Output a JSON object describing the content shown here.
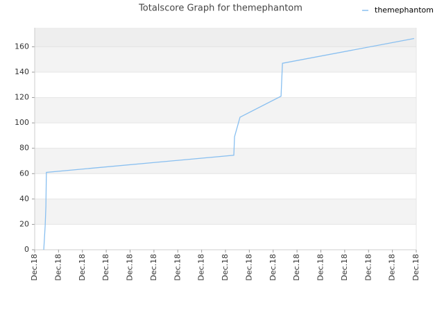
{
  "chart_data": {
    "type": "line",
    "title": "Totalscore Graph for themephantom",
    "x": [
      0.38,
      0.44,
      0.47,
      0.49,
      8.35,
      8.38,
      8.61,
      10.33,
      10.39,
      15.91
    ],
    "series": [
      {
        "name": "themephantom",
        "color": "#88bff0",
        "values": [
          0,
          19,
          34,
          61,
          74.5,
          89,
          104.5,
          121,
          147,
          166.5
        ]
      }
    ],
    "xlim": [
      0,
      16
    ],
    "xticks": [
      {
        "value": 0,
        "label": "Dec.18"
      },
      {
        "value": 1,
        "label": "Dec.18"
      },
      {
        "value": 2,
        "label": "Dec.18"
      },
      {
        "value": 3,
        "label": "Dec.18"
      },
      {
        "value": 4,
        "label": "Dec.18"
      },
      {
        "value": 5,
        "label": "Dec.18"
      },
      {
        "value": 6,
        "label": "Dec.18"
      },
      {
        "value": 7,
        "label": "Dec.18"
      },
      {
        "value": 8,
        "label": "Dec.18"
      },
      {
        "value": 9,
        "label": "Dec.18"
      },
      {
        "value": 10,
        "label": "Dec.18"
      },
      {
        "value": 11,
        "label": "Dec.18"
      },
      {
        "value": 12,
        "label": "Dec.18"
      },
      {
        "value": 13,
        "label": "Dec.18"
      },
      {
        "value": 14,
        "label": "Dec.18"
      },
      {
        "value": 15,
        "label": "Dec.18"
      },
      {
        "value": 16,
        "label": "Dec.18"
      }
    ],
    "ylim": [
      0,
      175
    ],
    "yticks": [
      0,
      20,
      40,
      60,
      80,
      100,
      120,
      140,
      160
    ],
    "grid": true,
    "legend": "top-right"
  }
}
